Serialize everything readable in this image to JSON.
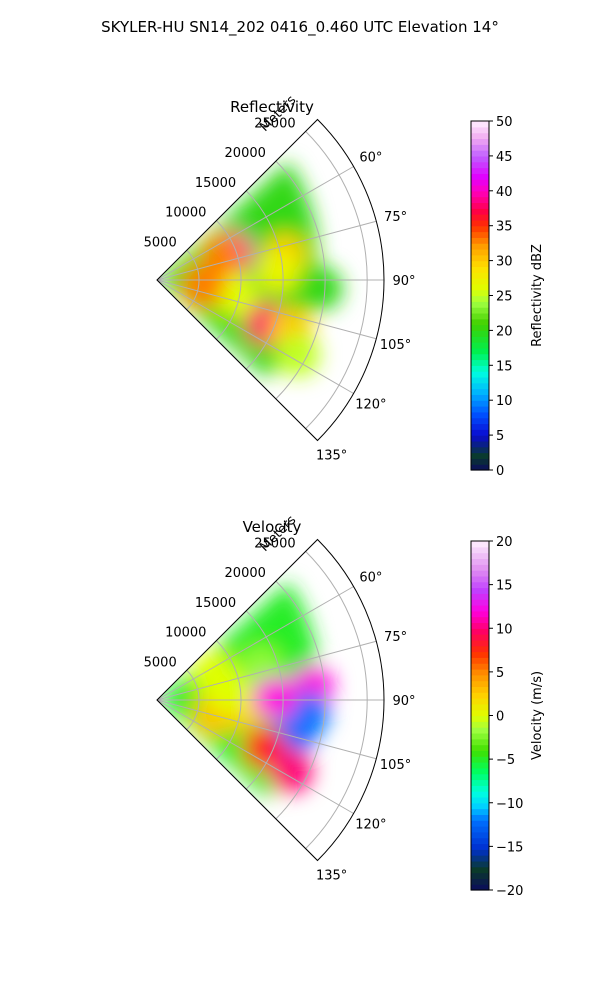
{
  "figure": {
    "suptitle": "SKYLER-HU  SN14_202  0416_0.460 UTC Elevation 14°"
  },
  "chart_data": [
    {
      "type": "heatmap",
      "projection": "polar-sector",
      "title": "Reflectivity",
      "radial_label": "Meters",
      "radial_ticks": [
        "5000",
        "10000",
        "15000",
        "20000",
        "25000"
      ],
      "radial_tick_values": [
        5000,
        10000,
        15000,
        20000,
        25000
      ],
      "range_max": 27000,
      "angle_ticks": [
        "60°",
        "75°",
        "90°",
        "105°",
        "120°",
        "135°"
      ],
      "angle_tick_values": [
        60,
        75,
        90,
        105,
        120,
        135
      ],
      "sector_deg": [
        45,
        135
      ],
      "grid": true,
      "colorbar": {
        "label": "Reflectivity dBZ",
        "ticks": [
          "0",
          "5",
          "10",
          "15",
          "20",
          "25",
          "30",
          "35",
          "40",
          "45",
          "50"
        ],
        "vmin": 0,
        "vmax": 50,
        "stops": [
          [
            0,
            "#0b0b5c"
          ],
          [
            0.04,
            "#0a3b2a"
          ],
          [
            0.1,
            "#0a0ad0"
          ],
          [
            0.16,
            "#0050ff"
          ],
          [
            0.22,
            "#00b0ff"
          ],
          [
            0.28,
            "#00ffe0"
          ],
          [
            0.34,
            "#00f050"
          ],
          [
            0.42,
            "#40d000"
          ],
          [
            0.48,
            "#a0ff40"
          ],
          [
            0.52,
            "#e0ff00"
          ],
          [
            0.58,
            "#ffe000"
          ],
          [
            0.64,
            "#ffa000"
          ],
          [
            0.7,
            "#ff3000"
          ],
          [
            0.74,
            "#ff0040"
          ],
          [
            0.8,
            "#ff00c0"
          ],
          [
            0.84,
            "#e000ff"
          ],
          [
            0.9,
            "#c060ff"
          ],
          [
            0.95,
            "#f0a8f0"
          ],
          [
            1,
            "#fff0ff"
          ]
        ]
      },
      "features": [
        {
          "angle": 70,
          "range": 9500,
          "value": 40
        },
        {
          "angle": 70,
          "range": 8500,
          "value": 33
        },
        {
          "angle": 79,
          "range": 15500,
          "value": 30
        },
        {
          "angle": 86,
          "range": 14500,
          "value": 27
        },
        {
          "angle": 112,
          "range": 14000,
          "value": 38
        },
        {
          "angle": 110,
          "range": 17000,
          "value": 30
        },
        {
          "angle": 101,
          "range": 9500,
          "value": 26
        },
        {
          "angle": 97,
          "range": 5500,
          "value": 33
        },
        {
          "angle": 118,
          "range": 19000,
          "value": 25
        },
        {
          "angle": 93,
          "range": 19500,
          "value": 20
        }
      ]
    },
    {
      "type": "heatmap",
      "projection": "polar-sector",
      "title": "Velocity",
      "radial_label": "Meters",
      "radial_ticks": [
        "5000",
        "10000",
        "15000",
        "20000",
        "25000"
      ],
      "radial_tick_values": [
        5000,
        10000,
        15000,
        20000,
        25000
      ],
      "range_max": 27000,
      "angle_ticks": [
        "60°",
        "75°",
        "90°",
        "105°",
        "120°",
        "135°"
      ],
      "angle_tick_values": [
        60,
        75,
        90,
        105,
        120,
        135
      ],
      "sector_deg": [
        45,
        135
      ],
      "grid": true,
      "colorbar": {
        "label": "Velocity (m/s)",
        "ticks": [
          "−20",
          "−15",
          "−10",
          "−5",
          "0",
          "5",
          "10",
          "15",
          "20"
        ],
        "vmin": -20,
        "vmax": 20,
        "stops": [
          [
            0,
            "#0b0b5c"
          ],
          [
            0.06,
            "#0a3b2a"
          ],
          [
            0.12,
            "#0030d0"
          ],
          [
            0.2,
            "#0070ff"
          ],
          [
            0.24,
            "#00d0ff"
          ],
          [
            0.28,
            "#00ffe0"
          ],
          [
            0.34,
            "#00ff60"
          ],
          [
            0.4,
            "#40e000"
          ],
          [
            0.46,
            "#a0ff40"
          ],
          [
            0.5,
            "#e0ff00"
          ],
          [
            0.56,
            "#ffd000"
          ],
          [
            0.62,
            "#ff9000"
          ],
          [
            0.68,
            "#ff3000"
          ],
          [
            0.74,
            "#ff0060"
          ],
          [
            0.8,
            "#ff00e0"
          ],
          [
            0.86,
            "#c040ff"
          ],
          [
            0.92,
            "#e090f0"
          ],
          [
            1,
            "#fff0ff"
          ]
        ]
      },
      "features": [
        {
          "angle": 66,
          "range": 7500,
          "value": 0
        },
        {
          "angle": 72,
          "range": 13000,
          "value": -2
        },
        {
          "angle": 85,
          "range": 18500,
          "value": 12
        },
        {
          "angle": 103,
          "range": 17000,
          "value": -12
        },
        {
          "angle": 95,
          "range": 18000,
          "value": -12
        },
        {
          "angle": 114,
          "range": 14000,
          "value": 8
        },
        {
          "angle": 118,
          "range": 18000,
          "value": 10
        },
        {
          "angle": 96,
          "range": 10000,
          "value": 2
        },
        {
          "angle": 104,
          "range": 7000,
          "value": 3
        },
        {
          "angle": 84,
          "range": 8500,
          "value": 0
        },
        {
          "angle": 89,
          "range": 14000,
          "value": 12
        }
      ]
    }
  ]
}
